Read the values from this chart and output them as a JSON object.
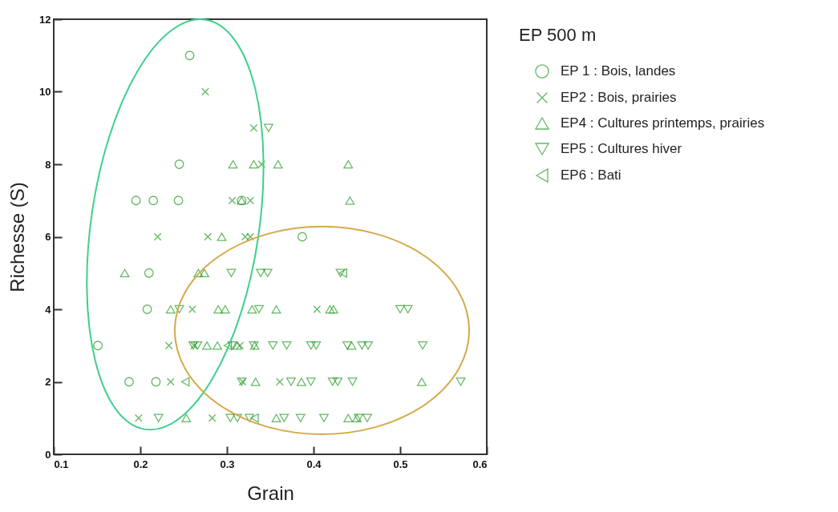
{
  "chart_data": {
    "type": "scatter",
    "xlabel": "Grain",
    "ylabel": "Richesse (S)",
    "legend_title": "EP 500 m",
    "legend": "right",
    "grid": false,
    "xlim": [
      0.1,
      0.6
    ],
    "xticks": [
      0.1,
      0.2,
      0.3,
      0.4,
      0.5,
      0.6
    ],
    "ylim": [
      0,
      12
    ],
    "yticks": [
      0,
      2,
      4,
      6,
      8,
      10,
      12
    ],
    "series": [
      {
        "name": "EP 1 : Bois, landes",
        "color": "#229922",
        "marker": "circle",
        "x": [
          0.257,
          0.245,
          0.195,
          0.215,
          0.244,
          0.317,
          0.21,
          0.208,
          0.151,
          0.187,
          0.218,
          0.387
        ],
        "values": [
          11,
          8,
          7,
          7,
          7,
          7,
          5,
          4,
          3,
          2,
          2,
          6
        ]
      },
      {
        "name": "EP2 : Bois, prairies",
        "color": "#229922",
        "marker": "cross",
        "x": [
          0.275,
          0.331,
          0.34,
          0.306,
          0.327,
          0.22,
          0.278,
          0.321,
          0.327,
          0.26,
          0.404,
          0.233,
          0.262,
          0.315,
          0.235,
          0.361,
          0.318,
          0.198,
          0.283
        ],
        "values": [
          10,
          9,
          8,
          7,
          7,
          6,
          6,
          6,
          6,
          4,
          4,
          3,
          3,
          3,
          2,
          2,
          2,
          1,
          1
        ]
      },
      {
        "name": "EP4 : Cultures printemps, prairies",
        "color": "#229922",
        "marker": "triangle-up",
        "x": [
          0.307,
          0.331,
          0.359,
          0.44,
          0.317,
          0.442,
          0.294,
          0.182,
          0.267,
          0.274,
          0.235,
          0.29,
          0.298,
          0.329,
          0.357,
          0.419,
          0.423,
          0.277,
          0.289,
          0.312,
          0.332,
          0.444,
          0.333,
          0.386,
          0.525,
          0.253,
          0.357,
          0.44,
          0.45
        ],
        "values": [
          8,
          8,
          8,
          8,
          7,
          7,
          6,
          5,
          5,
          5,
          4,
          4,
          4,
          4,
          4,
          4,
          4,
          3,
          3,
          3,
          3,
          3,
          2,
          2,
          2,
          1,
          1,
          1,
          1
        ]
      },
      {
        "name": "EP5 : Cultures hiver",
        "color": "#229922",
        "marker": "triangle-down",
        "x": [
          0.348,
          0.305,
          0.339,
          0.347,
          0.431,
          0.245,
          0.337,
          0.5,
          0.509,
          0.261,
          0.266,
          0.306,
          0.331,
          0.353,
          0.369,
          0.397,
          0.403,
          0.439,
          0.456,
          0.463,
          0.526,
          0.317,
          0.374,
          0.397,
          0.422,
          0.428,
          0.445,
          0.57,
          0.221,
          0.304,
          0.312,
          0.326,
          0.366,
          0.385,
          0.412,
          0.452,
          0.462
        ],
        "values": [
          9,
          5,
          5,
          5,
          5,
          4,
          4,
          4,
          4,
          3,
          3,
          3,
          3,
          3,
          3,
          3,
          3,
          3,
          3,
          3,
          3,
          2,
          2,
          2,
          2,
          2,
          2,
          2,
          1,
          1,
          1,
          1,
          1,
          1,
          1,
          1,
          1
        ]
      },
      {
        "name": "EP6 : Bati",
        "color": "#229922",
        "marker": "triangle-left",
        "x": [
          0.252,
          0.332,
          0.434,
          0.301
        ],
        "values": [
          2,
          1,
          5,
          3
        ]
      }
    ]
  }
}
